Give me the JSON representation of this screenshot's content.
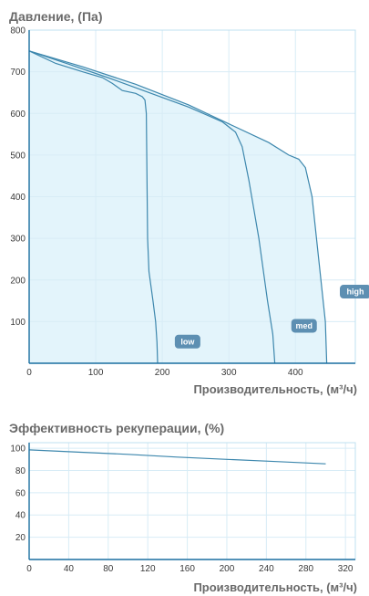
{
  "chart_data": [
    {
      "type": "line",
      "title": "Давление, (Па)",
      "xlabel": "Производительность, (м³/ч)",
      "xlim": [
        0,
        490
      ],
      "ylim": [
        0,
        800
      ],
      "x_ticks": [
        0,
        100,
        200,
        300,
        400
      ],
      "y_ticks": [
        100,
        200,
        300,
        400,
        500,
        600,
        700,
        800
      ],
      "area_fill": true,
      "series": [
        {
          "name": "low",
          "points": [
            [
              0,
              750
            ],
            [
              40,
              720
            ],
            [
              80,
              700
            ],
            [
              110,
              686
            ],
            [
              125,
              672
            ],
            [
              140,
              655
            ],
            [
              160,
              648
            ],
            [
              170,
              640
            ],
            [
              174,
              632
            ],
            [
              176,
              600
            ],
            [
              177,
              450
            ],
            [
              178,
              300
            ],
            [
              180,
              220
            ],
            [
              186,
              150
            ],
            [
              190,
              100
            ],
            [
              192,
              50
            ],
            [
              193,
              0
            ]
          ]
        },
        {
          "name": "med",
          "points": [
            [
              0,
              750
            ],
            [
              60,
              718
            ],
            [
              120,
              685
            ],
            [
              180,
              650
            ],
            [
              240,
              615
            ],
            [
              290,
              580
            ],
            [
              310,
              555
            ],
            [
              320,
              520
            ],
            [
              330,
              440
            ],
            [
              345,
              300
            ],
            [
              358,
              150
            ],
            [
              366,
              70
            ],
            [
              369,
              0
            ]
          ]
        },
        {
          "name": "high",
          "points": [
            [
              0,
              750
            ],
            [
              80,
              712
            ],
            [
              160,
              670
            ],
            [
              240,
              620
            ],
            [
              300,
              575
            ],
            [
              360,
              530
            ],
            [
              390,
              500
            ],
            [
              405,
              490
            ],
            [
              415,
              470
            ],
            [
              425,
              400
            ],
            [
              435,
              250
            ],
            [
              445,
              100
            ],
            [
              447,
              0
            ]
          ]
        }
      ],
      "labels": [
        {
          "text": "low",
          "x": 238,
          "y": 52
        },
        {
          "text": "med",
          "x": 413,
          "y": 90
        },
        {
          "text": "high",
          "x": 490,
          "y": 172
        }
      ]
    },
    {
      "type": "line",
      "title": "Эффективность рекуперации, (%)",
      "xlabel": "Производительность, (м³/ч)",
      "xlim": [
        0,
        330
      ],
      "ylim": [
        0,
        105
      ],
      "x_ticks": [
        0,
        40,
        80,
        120,
        160,
        200,
        240,
        280,
        320
      ],
      "y_ticks": [
        20,
        40,
        60,
        80,
        100
      ],
      "area_fill": false,
      "series": [
        {
          "name": "",
          "points": [
            [
              0,
              98.5
            ],
            [
              50,
              96.5
            ],
            [
              100,
              94.5
            ],
            [
              150,
              92
            ],
            [
              200,
              90
            ],
            [
              250,
              88
            ],
            [
              300,
              86
            ]
          ]
        }
      ]
    }
  ]
}
